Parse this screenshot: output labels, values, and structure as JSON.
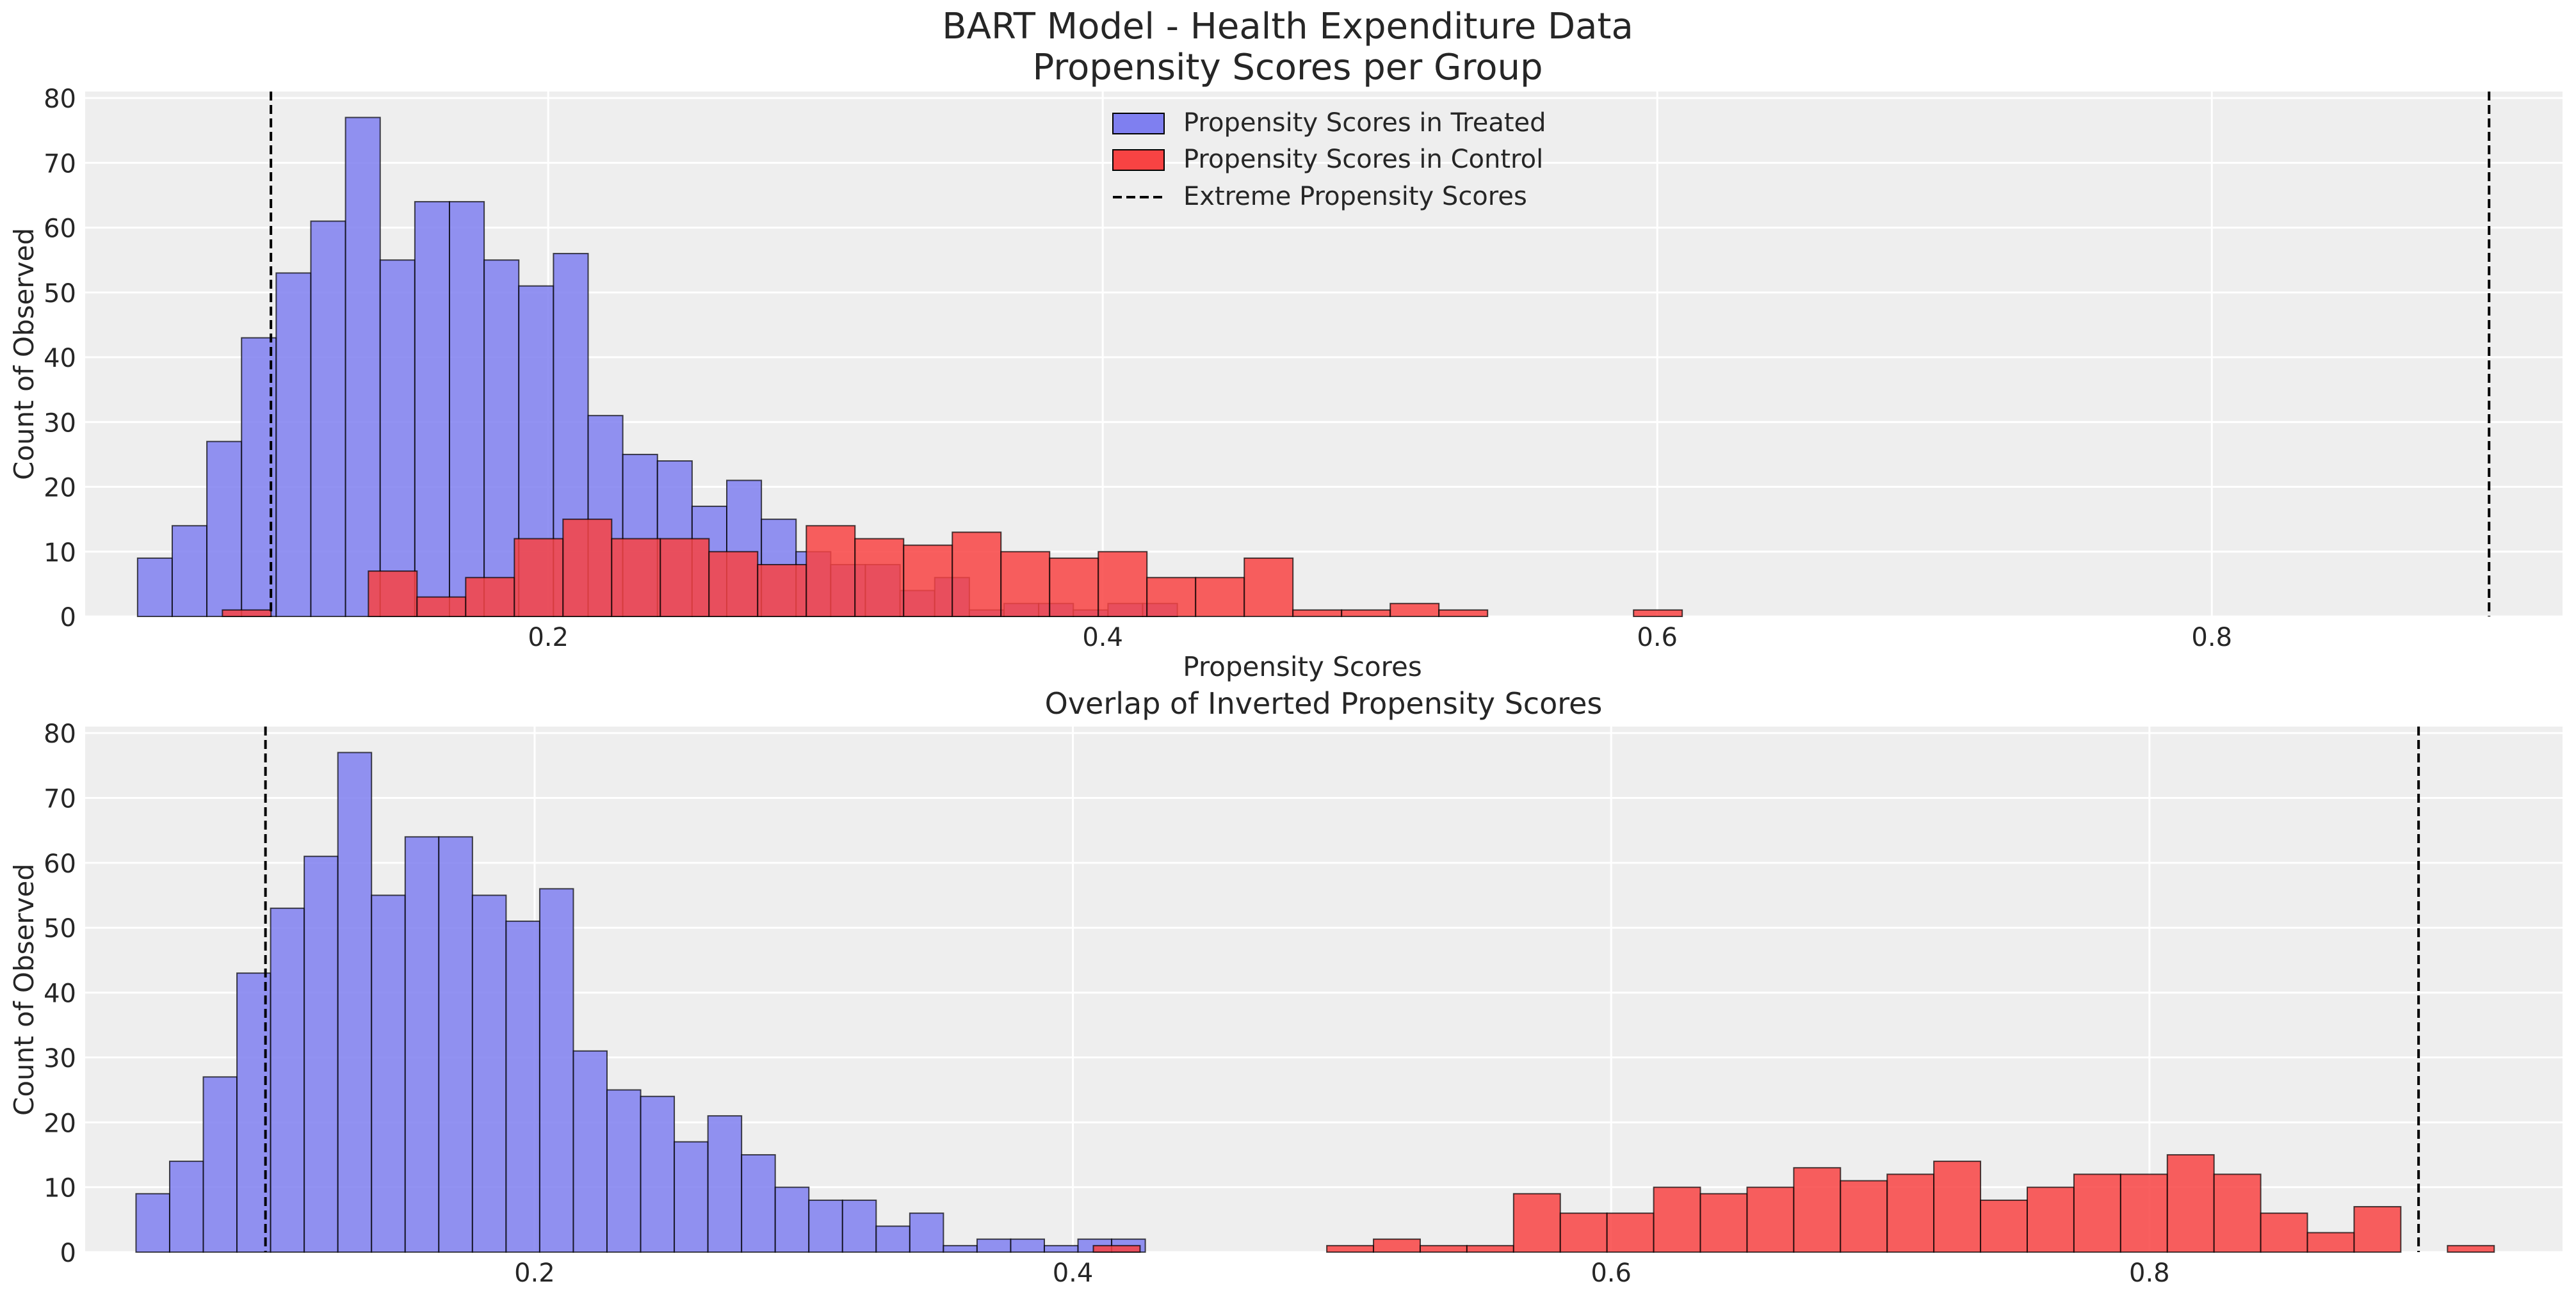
{
  "figure": {
    "suptitle_line1": "BART Model - Health Expenditure Data",
    "suptitle_line2": "Propensity Scores per Group"
  },
  "colors": {
    "background": "#eeeeee",
    "grid": "#ffffff",
    "treated": "#7f7ff0",
    "control": "#f84343",
    "edge": "#000000",
    "vline": "#000000",
    "text": "#262626"
  },
  "chart_data": [
    {
      "type": "bar",
      "title": "",
      "xlabel": "Propensity Scores",
      "ylabel": "Count of Observed",
      "xlim": [
        0.033,
        0.9265
      ],
      "ylim": [
        0,
        81
      ],
      "xticks": [
        0.2,
        0.4,
        0.6,
        0.8
      ],
      "yticks": [
        0,
        10,
        20,
        30,
        40,
        50,
        60,
        70,
        80
      ],
      "grid": true,
      "legend_position": "top-center",
      "legend": [
        {
          "label": "Propensity Scores in Treated",
          "kind": "patch",
          "series": "treated"
        },
        {
          "label": "Propensity Scores in Control",
          "kind": "patch",
          "series": "control"
        },
        {
          "label": "Extreme Propensity Scores",
          "kind": "dashed-line",
          "series": "vline"
        }
      ],
      "vlines": [
        0.1,
        0.9
      ],
      "series": [
        {
          "name": "Propensity Scores in Treated",
          "color_key": "treated",
          "bin_start": 0.0519,
          "bin_width": 0.0125,
          "values": [
            9,
            14,
            27,
            43,
            53,
            61,
            77,
            55,
            64,
            64,
            55,
            51,
            56,
            31,
            25,
            24,
            17,
            21,
            15,
            10,
            8,
            8,
            4,
            6,
            1,
            2,
            2,
            1,
            2,
            2
          ]
        },
        {
          "name": "Propensity Scores in Control",
          "color_key": "control",
          "bin_start": 0.0825,
          "bin_width": 0.01755,
          "values": [
            1,
            0,
            0,
            7,
            3,
            6,
            12,
            15,
            12,
            12,
            10,
            8,
            14,
            12,
            11,
            13,
            10,
            9,
            10,
            6,
            6,
            9,
            1,
            1,
            2,
            1,
            0,
            0,
            0,
            1
          ]
        }
      ]
    },
    {
      "type": "bar",
      "title": "Overlap of Inverted Propensity Scores",
      "xlabel": "",
      "ylabel": "Count of Observed",
      "xlim": [
        0.033,
        0.9535
      ],
      "ylim": [
        0,
        81
      ],
      "xticks": [
        0.2,
        0.4,
        0.6,
        0.8
      ],
      "yticks": [
        0,
        10,
        20,
        30,
        40,
        50,
        60,
        70,
        80
      ],
      "grid": true,
      "vlines": [
        0.1,
        0.9
      ],
      "series": [
        {
          "name": "Propensity Scores in Treated",
          "color_key": "treated",
          "bin_start": 0.0519,
          "bin_width": 0.0125,
          "values": [
            9,
            14,
            27,
            43,
            53,
            61,
            77,
            55,
            64,
            64,
            55,
            51,
            56,
            31,
            25,
            24,
            17,
            21,
            15,
            10,
            8,
            8,
            4,
            6,
            1,
            2,
            2,
            1,
            2,
            2
          ]
        },
        {
          "name": "Propensity Scores in Control",
          "color_key": "control",
          "bin_start": 0.4076,
          "bin_width": 0.01735,
          "values": [
            1,
            0,
            0,
            0,
            0,
            1,
            2,
            1,
            1,
            9,
            6,
            6,
            10,
            9,
            10,
            13,
            11,
            12,
            14,
            8,
            10,
            12,
            12,
            15,
            12,
            6,
            3,
            7,
            0,
            1
          ]
        }
      ]
    }
  ]
}
